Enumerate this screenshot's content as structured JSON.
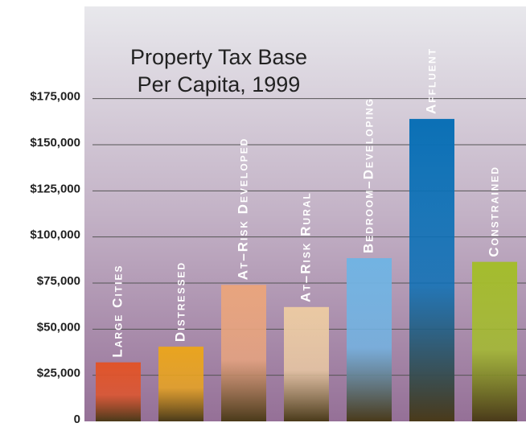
{
  "chart_data": {
    "type": "bar",
    "title": [
      "Property Tax Base",
      "Per Capita, 1999"
    ],
    "categories": [
      "Large Cities",
      "Distressed",
      "At–Risk Developed",
      "At–Risk Rural",
      "Bedroom–Developing",
      "Affluent",
      "Constrained"
    ],
    "values": [
      32000,
      40500,
      74000,
      62000,
      88500,
      164000,
      86500
    ],
    "colors": [
      "#e0542a",
      "#e9a41f",
      "#e8a47e",
      "#eac9a3",
      "#72b3e2",
      "#0b70b6",
      "#a4bc2d"
    ],
    "ylim": [
      0,
      225000
    ],
    "yticks": [
      0,
      {
        "value": 25000,
        "label": "$25,000"
      },
      {
        "value": 50000,
        "label": "$50,000"
      },
      {
        "value": 75000,
        "label": "$75,000"
      },
      {
        "value": 100000,
        "label": "$100,000"
      },
      {
        "value": 125000,
        "label": "$125,000"
      },
      {
        "value": 150000,
        "label": "$150,000"
      },
      {
        "value": 175000,
        "label": "$175,000"
      }
    ],
    "grid": true
  }
}
